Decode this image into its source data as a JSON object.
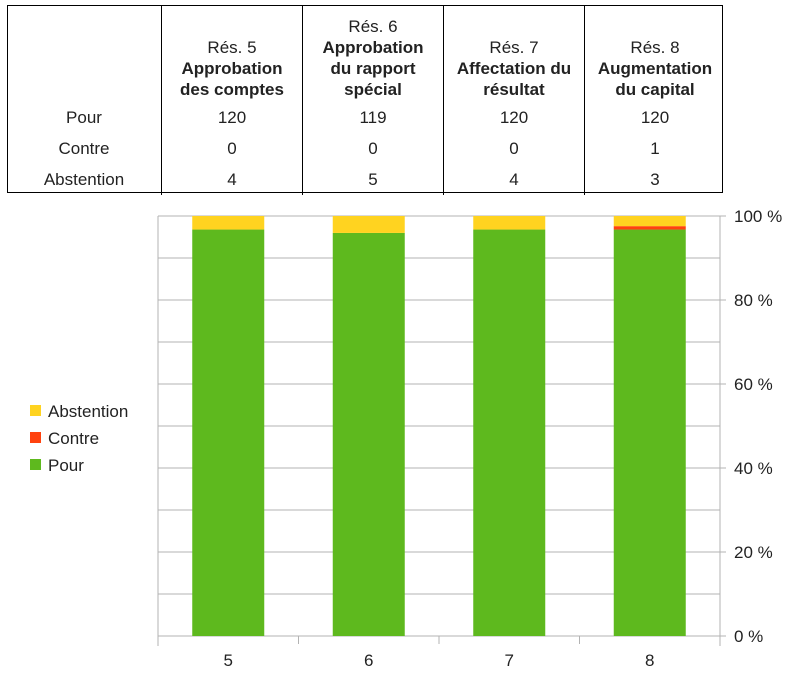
{
  "table": {
    "columns": [
      {
        "res": "Rés. 5",
        "title": "Approbation des comptes",
        "lines": [
          "Approbation",
          "des comptes"
        ]
      },
      {
        "res": "Rés. 6",
        "title": "Approbation du rapport spécial",
        "lines": [
          "Approbation",
          "du rapport",
          "spécial"
        ]
      },
      {
        "res": "Rés. 7",
        "title": "Affectation du résultat",
        "lines": [
          "Affectation du",
          "résultat"
        ]
      },
      {
        "res": "Rés. 8",
        "title": "Augmentation du capital",
        "lines": [
          "Augmentation",
          "du capital"
        ]
      }
    ],
    "rows": [
      {
        "label": "Pour",
        "values": [
          "120",
          "119",
          "120",
          "120"
        ]
      },
      {
        "label": "Contre",
        "values": [
          "0",
          "0",
          "0",
          "1"
        ]
      },
      {
        "label": "Abstention",
        "values": [
          "4",
          "5",
          "4",
          "3"
        ]
      }
    ]
  },
  "chart_data": {
    "type": "bar",
    "stacked": "percent",
    "categories": [
      "5",
      "6",
      "7",
      "8"
    ],
    "series": [
      {
        "name": "Pour",
        "values": [
          120,
          119,
          120,
          120
        ],
        "color": "#5eb91e"
      },
      {
        "name": "Contre",
        "values": [
          0,
          0,
          0,
          1
        ],
        "color": "#ff420e"
      },
      {
        "name": "Abstention",
        "values": [
          4,
          5,
          4,
          3
        ],
        "color": "#ffd320"
      }
    ],
    "ylim": [
      0,
      100
    ],
    "yticks": [
      "0 %",
      "20 %",
      "40 %",
      "60 %",
      "80 %",
      "100 %"
    ],
    "y_axis_side": "right",
    "grid": true,
    "legend_placement": "left"
  }
}
